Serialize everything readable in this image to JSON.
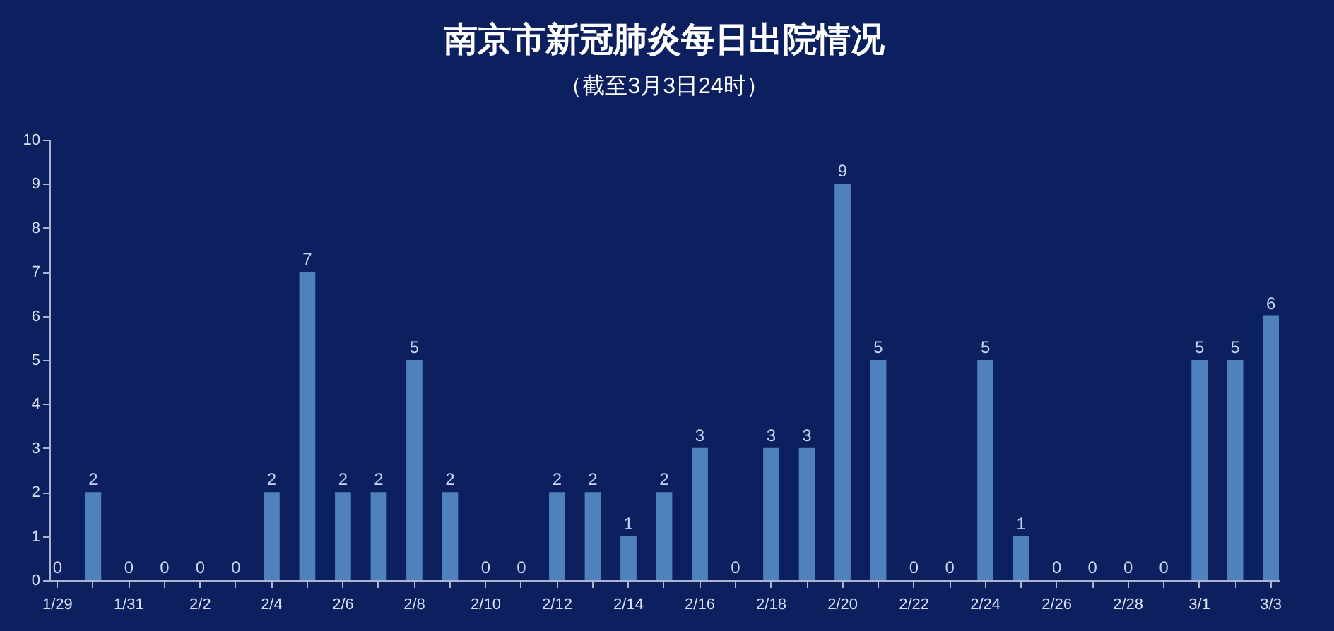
{
  "chart_data": {
    "type": "bar",
    "title": "南京市新冠肺炎每日出院情况",
    "subtitle": "（截至3月3日24时）",
    "categories": [
      "1/29",
      null,
      "1/31",
      null,
      "2/2",
      null,
      "2/4",
      null,
      "2/6",
      null,
      "2/8",
      null,
      "2/10",
      null,
      "2/12",
      null,
      "2/14",
      null,
      "2/16",
      null,
      "2/18",
      null,
      "2/20",
      null,
      "2/22",
      null,
      "2/24",
      null,
      "2/26",
      null,
      "2/28",
      null,
      "3/1",
      null,
      "3/3"
    ],
    "values": [
      0,
      2,
      0,
      0,
      0,
      0,
      2,
      7,
      2,
      2,
      5,
      2,
      0,
      0,
      2,
      2,
      1,
      2,
      3,
      0,
      3,
      3,
      9,
      5,
      0,
      0,
      5,
      1,
      0,
      0,
      0,
      0,
      5,
      5,
      6
    ],
    "color": "#4f81bd",
    "ylim": [
      0,
      10
    ],
    "yticks": [
      0,
      1,
      2,
      3,
      4,
      5,
      6,
      7,
      8,
      9,
      10
    ],
    "grid": false,
    "data_labels": true
  }
}
